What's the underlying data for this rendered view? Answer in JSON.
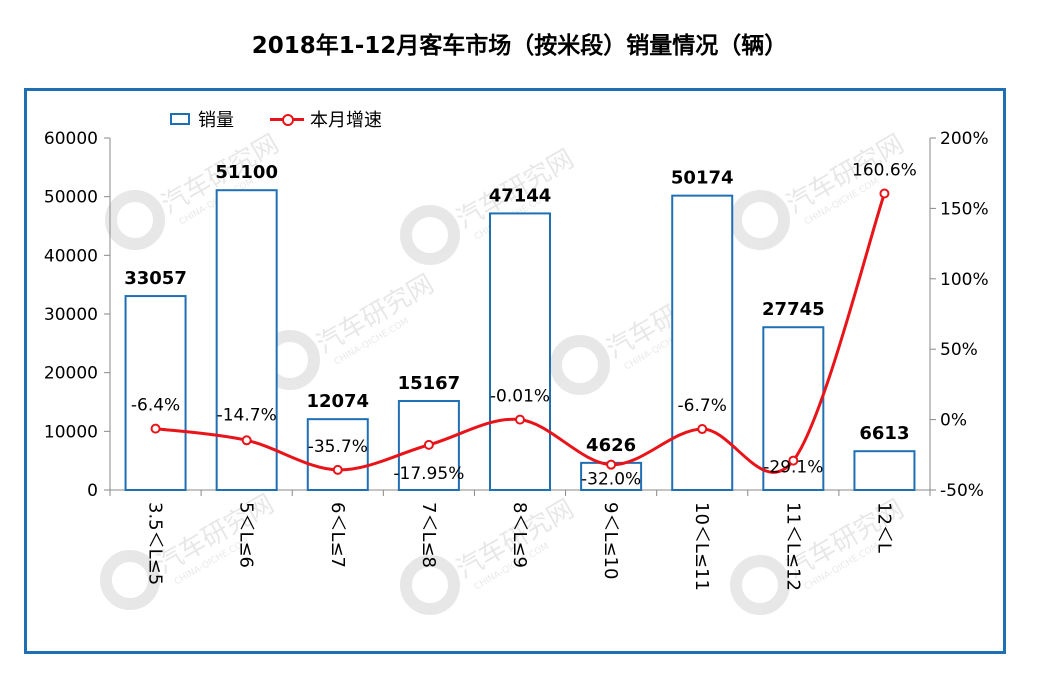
{
  "title": "2018年1-12月客车市场（按米段）销量情况（辆）",
  "legend": {
    "bar_label": "销量",
    "line_label": "本月增速"
  },
  "watermark": {
    "cn": "汽车研究网",
    "en": "CHINA-QICHE.COM"
  },
  "colors": {
    "frame": "#1f6fb5",
    "bar_stroke": "#1f6fb5",
    "line": "#e8141a",
    "axis": "#888888"
  },
  "chart_data": {
    "type": "bar+line",
    "title": "2018年1-12月客车市场（按米段）销量情况（辆）",
    "categories": [
      "3.5＜L≤5",
      "5＜L≤6",
      "6＜L≤7",
      "7＜L≤8",
      "8＜L≤9",
      "9＜L≤10",
      "10＜L≤11",
      "11＜L≤12",
      "12＜L"
    ],
    "series": [
      {
        "name": "销量",
        "kind": "bar",
        "axis": "left",
        "values": [
          33057,
          51100,
          12074,
          15167,
          47144,
          4626,
          50174,
          27745,
          6613
        ]
      },
      {
        "name": "本月增速",
        "kind": "line",
        "axis": "right",
        "values": [
          -6.4,
          -14.7,
          -35.7,
          -17.95,
          -0.01,
          -32.0,
          -6.7,
          -29.1,
          160.6
        ]
      }
    ],
    "bar_labels": [
      "33057",
      "51100",
      "12074",
      "15167",
      "47144",
      "4626",
      "50174",
      "27745",
      "6613"
    ],
    "line_labels": [
      "-6.4%",
      "-14.7%",
      "-35.7%",
      "-17.95%",
      "-0.01%",
      "-32.0%",
      "-6.7%",
      "-29.1%",
      "160.6%"
    ],
    "ylim_left": [
      0,
      60000
    ],
    "yticks_left": [
      0,
      10000,
      20000,
      30000,
      40000,
      50000,
      60000
    ],
    "ylim_right": [
      -50,
      200
    ],
    "yticks_right": [
      "-50%",
      "0%",
      "50%",
      "100%",
      "150%",
      "200%"
    ],
    "legend_position": "top-left",
    "grid": false
  }
}
